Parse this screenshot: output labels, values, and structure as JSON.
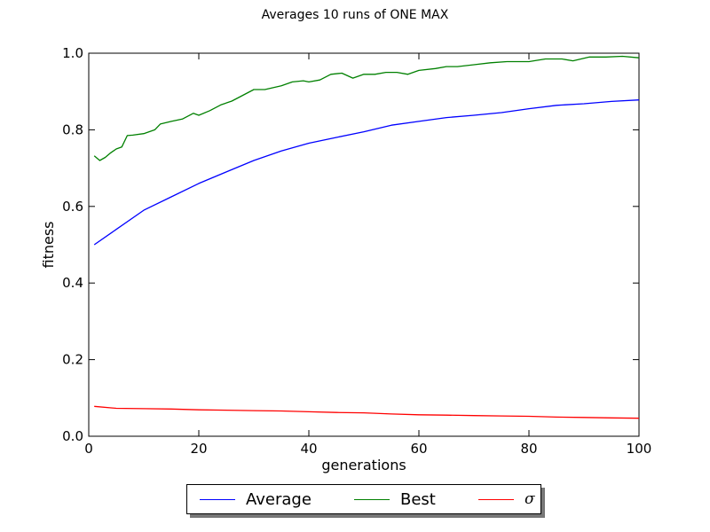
{
  "chart_data": {
    "type": "line",
    "title": "Averages 10 runs of ONE MAX",
    "xlabel": "generations",
    "ylabel": "fitness",
    "xlim": [
      0,
      100
    ],
    "ylim": [
      0.0,
      1.0
    ],
    "x_ticks": [
      "0",
      "20",
      "40",
      "60",
      "80",
      "100"
    ],
    "y_ticks": [
      "0.0",
      "0.2",
      "0.4",
      "0.6",
      "0.8",
      "1.0"
    ],
    "grid": false,
    "legend_position": "bottom-center",
    "series": [
      {
        "name": "Average",
        "color": "#0000ff",
        "x": [
          1,
          5,
          10,
          15,
          20,
          25,
          30,
          35,
          40,
          45,
          50,
          55,
          60,
          65,
          70,
          75,
          80,
          85,
          90,
          95,
          100
        ],
        "values": [
          0.5,
          0.54,
          0.59,
          0.625,
          0.66,
          0.69,
          0.72,
          0.745,
          0.765,
          0.78,
          0.795,
          0.812,
          0.822,
          0.832,
          0.838,
          0.845,
          0.855,
          0.864,
          0.868,
          0.874,
          0.878
        ]
      },
      {
        "name": "Best",
        "color": "#008000",
        "x": [
          1,
          2,
          3,
          4,
          5,
          6,
          7,
          8,
          10,
          12,
          13,
          15,
          17,
          19,
          20,
          22,
          24,
          26,
          28,
          30,
          32,
          35,
          37,
          39,
          40,
          42,
          44,
          46,
          48,
          50,
          52,
          54,
          56,
          58,
          60,
          63,
          65,
          67,
          70,
          73,
          76,
          80,
          83,
          86,
          88,
          91,
          94,
          97,
          100
        ],
        "values": [
          0.732,
          0.72,
          0.728,
          0.74,
          0.75,
          0.755,
          0.785,
          0.786,
          0.79,
          0.8,
          0.815,
          0.822,
          0.828,
          0.843,
          0.838,
          0.85,
          0.865,
          0.875,
          0.89,
          0.905,
          0.905,
          0.915,
          0.925,
          0.928,
          0.925,
          0.93,
          0.945,
          0.948,
          0.935,
          0.945,
          0.945,
          0.95,
          0.95,
          0.945,
          0.955,
          0.96,
          0.965,
          0.965,
          0.97,
          0.975,
          0.978,
          0.978,
          0.985,
          0.985,
          0.98,
          0.99,
          0.99,
          0.992,
          0.988
        ]
      },
      {
        "name": "σ",
        "color": "#ff0000",
        "x": [
          1,
          5,
          10,
          15,
          20,
          25,
          30,
          35,
          40,
          45,
          50,
          55,
          60,
          65,
          70,
          75,
          80,
          85,
          90,
          95,
          100
        ],
        "values": [
          0.078,
          0.073,
          0.072,
          0.071,
          0.069,
          0.068,
          0.067,
          0.066,
          0.064,
          0.062,
          0.061,
          0.058,
          0.056,
          0.055,
          0.054,
          0.053,
          0.052,
          0.05,
          0.049,
          0.048,
          0.047
        ]
      }
    ]
  },
  "legend": {
    "items": [
      {
        "label": "Average",
        "color": "#0000ff"
      },
      {
        "label": "Best",
        "color": "#008000"
      },
      {
        "label": "σ",
        "color": "#ff0000"
      }
    ]
  }
}
